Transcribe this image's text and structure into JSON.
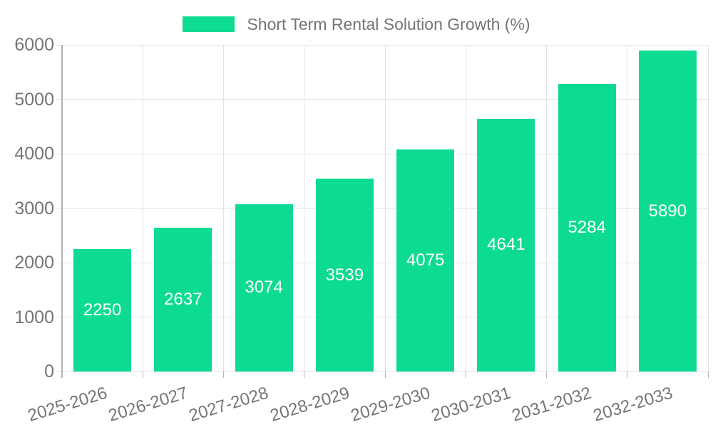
{
  "chart_data": {
    "type": "bar",
    "title": "Short Term Rental Solution Growth (%)",
    "legend_position": "top",
    "categories": [
      "2025-2026",
      "2026-2027",
      "2027-2028",
      "2028-2029",
      "2029-2030",
      "2030-2031",
      "2031-2032",
      "2032-2033"
    ],
    "series": [
      {
        "name": "Short Term Rental Solution Growth (%)",
        "values": [
          2250,
          2637,
          3074,
          3539,
          4075,
          4641,
          5284,
          5890
        ]
      }
    ],
    "xlabel": "",
    "ylabel": "",
    "ylim": [
      0,
      6000
    ],
    "y_ticks": [
      0,
      1000,
      2000,
      3000,
      4000,
      5000,
      6000
    ],
    "grid": true,
    "colors": {
      "bar": "#0ddb91",
      "value_label": "#ffffff",
      "axis_text": "#757575",
      "gridline": "#e3e3e3",
      "axis_line": "#b3b3b3",
      "background": "#ffffff"
    }
  }
}
